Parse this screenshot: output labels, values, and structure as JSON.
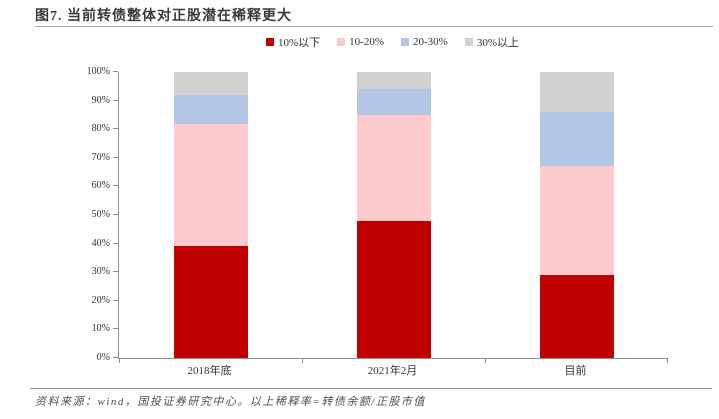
{
  "title": "图7. 当前转债整体对正股潜在稀释更大",
  "legend": [
    {
      "label": "10%以下",
      "color": "#c00000"
    },
    {
      "label": "10-20%",
      "color": "#fdcbce"
    },
    {
      "label": "20-30%",
      "color": "#b3c6e6"
    },
    {
      "label": "30%以上",
      "color": "#d1d1d1"
    }
  ],
  "chart_data": {
    "type": "bar",
    "stacked": true,
    "percent_stacked": true,
    "title": "图7. 当前转债整体对正股潜在稀释更大",
    "categories": [
      "2018年底",
      "2021年2月",
      "目前"
    ],
    "series": [
      {
        "name": "10%以下",
        "color": "#c00000",
        "values": [
          39,
          48,
          29
        ]
      },
      {
        "name": "10-20%",
        "color": "#fdcbce",
        "values": [
          43,
          37,
          38
        ]
      },
      {
        "name": "20-30%",
        "color": "#b3c6e6",
        "values": [
          10,
          9,
          19
        ]
      },
      {
        "name": "30%以上",
        "color": "#d1d1d1",
        "values": [
          8,
          6,
          14
        ]
      }
    ],
    "xlabel": "",
    "ylabel": "",
    "ylim": [
      0,
      100
    ],
    "ytick_step": 10,
    "ytick_labels": [
      "0%",
      "10%",
      "20%",
      "30%",
      "40%",
      "50%",
      "60%",
      "70%",
      "80%",
      "90%",
      "100%"
    ],
    "legend_position": "top",
    "grid": false
  },
  "footer": {
    "text": "资料来源：wind，国投证券研究中心。以上稀释率=转债余额/正股市值"
  }
}
